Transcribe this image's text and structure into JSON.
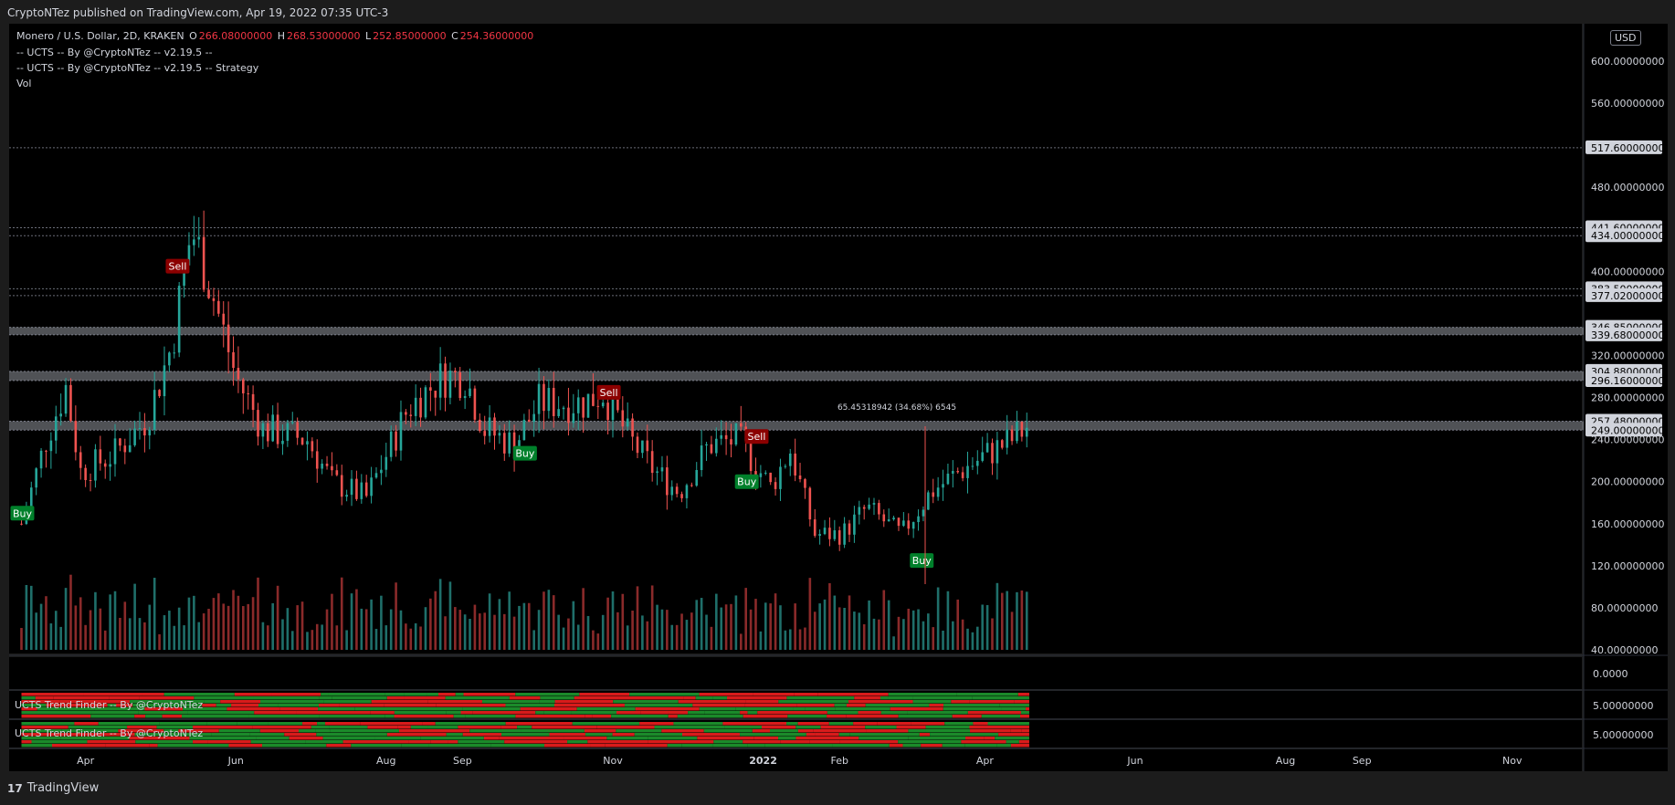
{
  "header": {
    "published_text": "CryptoNTez published on TradingView.com, Apr 19, 2022 07:35 UTC-3"
  },
  "legend": {
    "symbol": "Monero / U.S. Dollar, 2D, KRAKEN",
    "open_label": "O",
    "open": "266.08000000",
    "high_label": "H",
    "high": "268.53000000",
    "low_label": "L",
    "low": "252.85000000",
    "close_label": "C",
    "close": "254.36000000",
    "indicators": [
      "-- UCTS -- By @CryptoNTez -- v2.19.5 --",
      "-- UCTS -- By @CryptoNTez -- v2.19.5 -- Strategy",
      "Vol"
    ]
  },
  "currency_button": "USD",
  "footer": {
    "brand": "TradingView",
    "logo": "17"
  },
  "measure_label": "65.45318942 (34.68%) 6545",
  "panes": {
    "volume_axis": "0.0000",
    "trend_finder_1": {
      "label": "UCTS Trend Finder -- By @CryptoNTez",
      "axis": "5.00000000"
    },
    "trend_finder_2": {
      "label": "UCTS Trend Finder -- By @CryptoNTez",
      "axis": "5.00000000"
    }
  },
  "chart_data": {
    "type": "candlestick",
    "symbol": "Monero / U.S. Dollar, 2D, KRAKEN",
    "x_ticks": [
      "Apr",
      "Jun",
      "Aug",
      "Sep",
      "Nov",
      "2022",
      "Feb",
      "Apr",
      "Jun",
      "Aug",
      "Sep",
      "Nov"
    ],
    "y_ticks": [
      600,
      560,
      480,
      400,
      320,
      280,
      240,
      200,
      160,
      120,
      80,
      40
    ],
    "y_tick_labels": [
      "600.00000000",
      "560.00000000",
      "480.00000000",
      "400.00000000",
      "320.00000000",
      "280.00000000",
      "240.00000000",
      "200.00000000",
      "160.00000000",
      "120.00000000",
      "80.00000000",
      "40.00000000"
    ],
    "ylim": [
      40,
      615
    ],
    "level_labels": [
      {
        "value": 517.6,
        "label": "517.60000000"
      },
      {
        "value": 441.6,
        "label": "441.60000000"
      },
      {
        "value": 434.0,
        "label": "434.00000000"
      },
      {
        "value": 383.5,
        "label": "383.50000000"
      },
      {
        "value": 377.02,
        "label": "377.02000000"
      },
      {
        "value": 346.85,
        "label": "346.85000000"
      },
      {
        "value": 339.68,
        "label": "339.68000000"
      },
      {
        "value": 304.88,
        "label": "304.88000000"
      },
      {
        "value": 296.16,
        "label": "296.16000000"
      },
      {
        "value": 257.48,
        "label": "257.48000000"
      },
      {
        "value": 249.0,
        "label": "249.00000000"
      }
    ],
    "bands": [
      [
        339.68,
        346.85
      ],
      [
        296.16,
        304.88
      ],
      [
        249.0,
        257.48
      ]
    ],
    "signals": [
      {
        "type": "Buy",
        "x_date": "2021-03-06",
        "price": 170
      },
      {
        "type": "Sell",
        "x_date": "2021-05-08",
        "price": 405
      },
      {
        "type": "Buy",
        "x_date": "2021-09-26",
        "price": 227
      },
      {
        "type": "Sell",
        "x_date": "2021-10-30",
        "price": 285
      },
      {
        "type": "Sell",
        "x_date": "2021-12-29",
        "price": 243
      },
      {
        "type": "Buy",
        "x_date": "2021-12-25",
        "price": 200
      },
      {
        "type": "Buy",
        "x_date": "2022-03-06",
        "price": 125
      }
    ],
    "price_path": [
      [
        "2021-03-06",
        160
      ],
      [
        "2021-03-16",
        240
      ],
      [
        "2021-03-24",
        290
      ],
      [
        "2021-03-30",
        210
      ],
      [
        "2021-04-12",
        225
      ],
      [
        "2021-04-26",
        260
      ],
      [
        "2021-05-06",
        330
      ],
      [
        "2021-05-14",
        440
      ],
      [
        "2021-05-20",
        400
      ],
      [
        "2021-06-01",
        300
      ],
      [
        "2021-06-12",
        250
      ],
      [
        "2021-06-30",
        240
      ],
      [
        "2021-07-10",
        200
      ],
      [
        "2021-07-24",
        185
      ],
      [
        "2021-08-10",
        270
      ],
      [
        "2021-08-24",
        300
      ],
      [
        "2021-09-02",
        300
      ],
      [
        "2021-09-10",
        250
      ],
      [
        "2021-09-22",
        235
      ],
      [
        "2021-10-02",
        275
      ],
      [
        "2021-10-20",
        275
      ],
      [
        "2021-10-28",
        285
      ],
      [
        "2021-11-08",
        240
      ],
      [
        "2021-11-18",
        210
      ],
      [
        "2021-11-28",
        190
      ],
      [
        "2021-12-10",
        235
      ],
      [
        "2021-12-22",
        240
      ],
      [
        "2022-01-04",
        195
      ],
      [
        "2022-01-12",
        230
      ],
      [
        "2022-01-22",
        150
      ],
      [
        "2022-02-02",
        150
      ],
      [
        "2022-02-12",
        175
      ],
      [
        "2022-02-26",
        150
      ],
      [
        "2022-03-10",
        190
      ],
      [
        "2022-03-22",
        210
      ],
      [
        "2022-04-01",
        225
      ],
      [
        "2022-04-12",
        240
      ],
      [
        "2022-04-19",
        254
      ]
    ]
  }
}
